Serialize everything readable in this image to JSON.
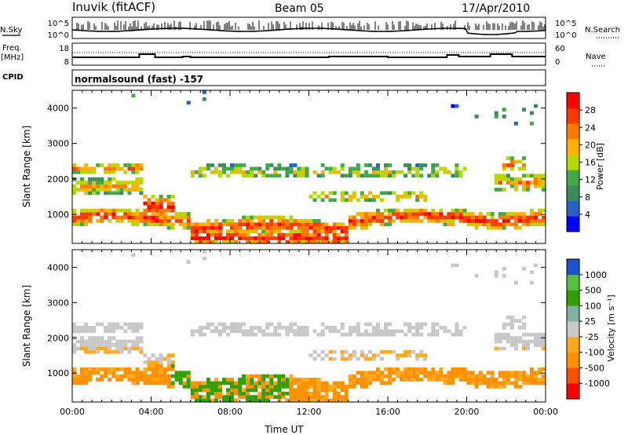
{
  "header": {
    "station": "Inuvik (fitACF)",
    "beam": "Beam 05",
    "date": "17/Apr/2010"
  },
  "strip_panels": {
    "nsky_label": "N.Sky",
    "nsky_ticks": [
      "10^5",
      "10^0"
    ],
    "nsearch_label": "N.Search",
    "nsearch_ticks": [
      "10^5",
      "10^0"
    ],
    "freq_label_1": "Freq.",
    "freq_label_2": "[MHz]",
    "freq_ticks": [
      "18",
      "8"
    ],
    "nave_label": "Nave",
    "nave_ticks": [
      "60",
      "0"
    ],
    "cpid_label": "CPID",
    "cpid_text": "normalsound (fast) -157"
  },
  "colors": {
    "power": [
      "#0000ff",
      "#2a5fc4",
      "#3a8a5c",
      "#42a84a",
      "#b5d800",
      "#ffb000",
      "#ff7a00",
      "#ff3a00",
      "#ff0000"
    ],
    "velocity": [
      "#ff0000",
      "#ff4f00",
      "#ff9000",
      "#ffa820",
      "#c8c8c8",
      "#80b0a0",
      "#30a000",
      "#58c040",
      "#1a52d0"
    ]
  },
  "chart_data": [
    {
      "type": "heatmap",
      "name": "power",
      "ylabel": "Slant Range [km]",
      "yticks": [
        "1000",
        "2000",
        "3000",
        "4000"
      ],
      "xticks": [
        "00:00",
        "04:00",
        "08:00",
        "12:00",
        "16:00",
        "20:00",
        "00:00"
      ],
      "xlim_hours": [
        0,
        24
      ],
      "ylim_km": [
        180,
        4500
      ],
      "colorbar_label": "Power [dB]",
      "colorbar_ticks": [
        "4",
        "8",
        "12",
        "16",
        "20",
        "24",
        "28"
      ]
    },
    {
      "type": "heatmap",
      "name": "velocity",
      "ylabel": "Slant Range [km]",
      "xlabel": "Time UT",
      "yticks": [
        "1000",
        "2000",
        "3000",
        "4000"
      ],
      "xticks": [
        "00:00",
        "04:00",
        "08:00",
        "12:00",
        "16:00",
        "20:00",
        "00:00"
      ],
      "xlim_hours": [
        0,
        24
      ],
      "ylim_km": [
        180,
        4500
      ],
      "colorbar_label": "Velocity [m s⁻¹]",
      "colorbar_ticks": [
        "1000",
        "500",
        "100",
        "25",
        "-25",
        "-100",
        "-500",
        "-1000"
      ]
    }
  ]
}
